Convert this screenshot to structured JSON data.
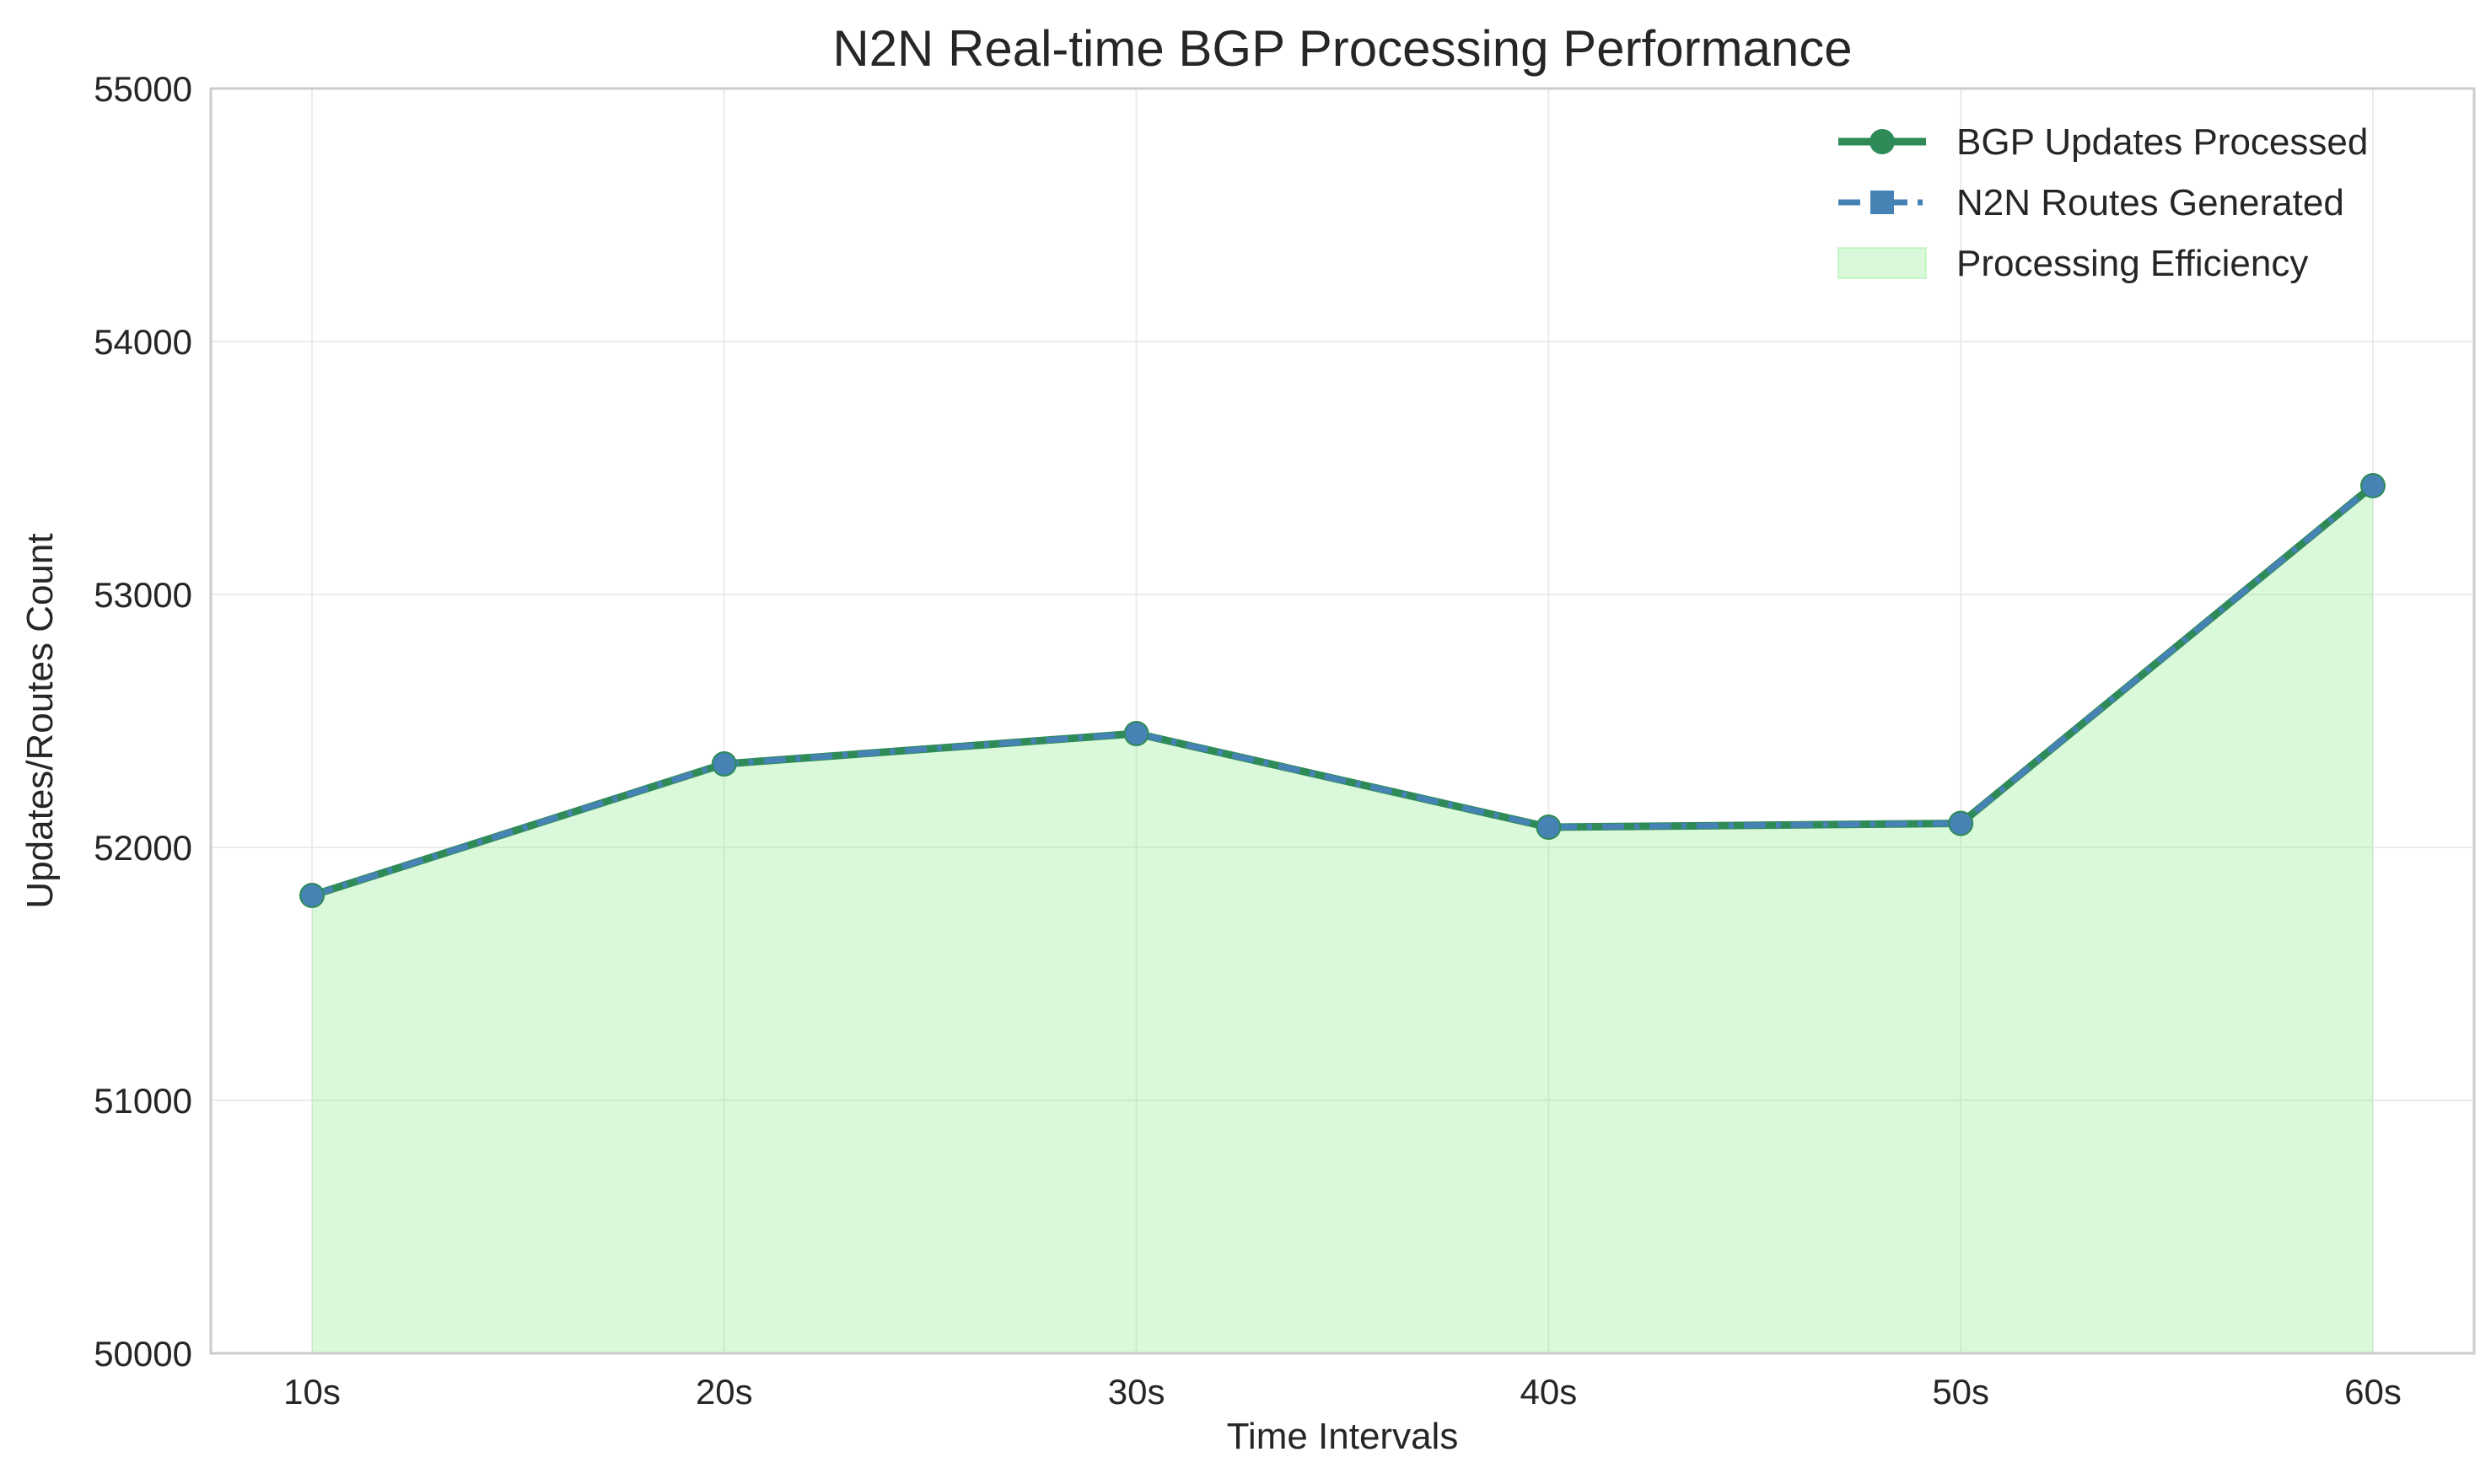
{
  "chart_data": {
    "type": "line",
    "title": "N2N Real-time BGP Processing Performance",
    "xlabel": "Time Intervals",
    "ylabel": "Updates/Routes Count",
    "categories": [
      "10s",
      "20s",
      "30s",
      "40s",
      "50s",
      "60s"
    ],
    "ylim": [
      50000,
      55000
    ],
    "yticks": [
      50000,
      51000,
      52000,
      53000,
      54000,
      55000
    ],
    "grid": true,
    "legend_position": "top-right",
    "series": [
      {
        "name": "BGP Updates Processed",
        "kind": "line",
        "marker": "circle",
        "line_style": "solid",
        "color": "#2e8b57",
        "values": [
          51810,
          52330,
          52450,
          52080,
          52095,
          53430
        ]
      },
      {
        "name": "N2N Routes Generated",
        "kind": "line",
        "marker": "square",
        "line_style": "dashed",
        "color": "#4682b4",
        "values": [
          51810,
          52330,
          52450,
          52080,
          52095,
          53430
        ]
      },
      {
        "name": "Processing Efficiency",
        "kind": "area",
        "color": "#90ee90",
        "values": [
          51810,
          52330,
          52450,
          52080,
          52095,
          53430
        ]
      }
    ]
  }
}
